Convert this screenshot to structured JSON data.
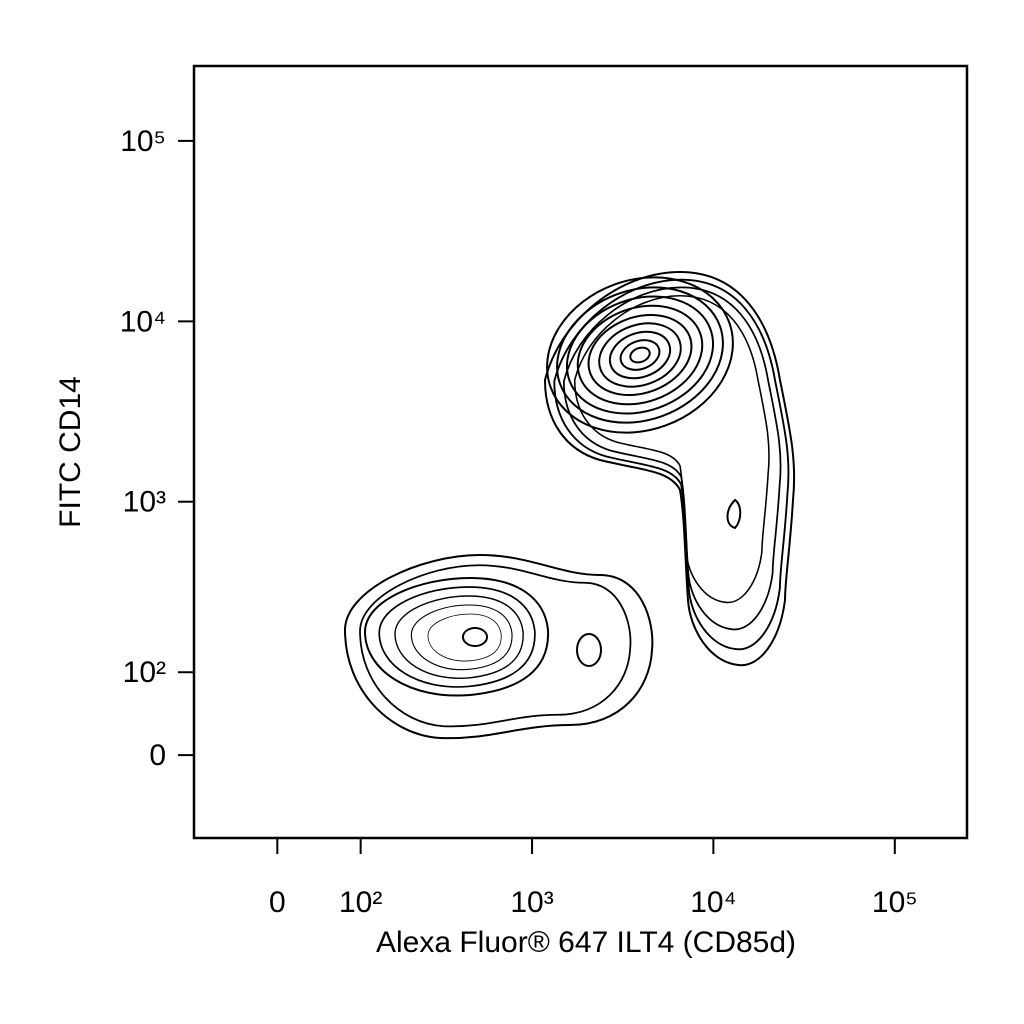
{
  "chart_data": {
    "type": "contour",
    "x_label": "Alexa Fluor® 647  ILT4 (CD85d)",
    "y_label": "FITC  CD14",
    "scale": "biexponential",
    "xlim": [
      -100,
      250000
    ],
    "ylim": [
      -100,
      260000
    ],
    "xticks": [
      0,
      {
        "value": 100,
        "label": "10²"
      },
      {
        "value": 1000,
        "label": "10³"
      },
      {
        "value": 10000,
        "label": "10⁴"
      },
      {
        "value": 100000,
        "label": "10⁵"
      }
    ],
    "yticks": [
      0,
      {
        "value": 100,
        "label": "10²"
      },
      {
        "value": 1000,
        "label": "10³"
      },
      {
        "value": 10000,
        "label": "10⁴"
      },
      {
        "value": 100000,
        "label": "10⁵"
      }
    ],
    "color": "#000000"
  }
}
